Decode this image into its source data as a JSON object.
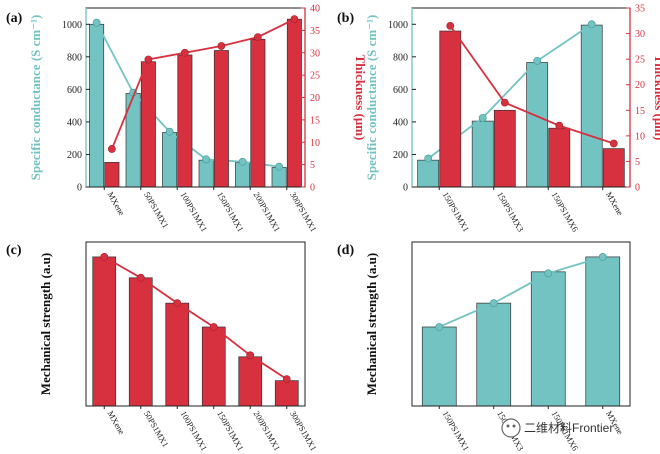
{
  "colors": {
    "teal": "#72c3c1",
    "teal_dark": "#3f9a98",
    "red": "#d7303f",
    "red_dark": "#a81d2a",
    "axis": "#222222"
  },
  "watermark": "二维材料Frontier",
  "chart_data": [
    {
      "panel": "(a)",
      "type": "bar",
      "categories": [
        "MXene",
        "50PS1MX1",
        "100PS1MX1",
        "150PS1MX1",
        "200PS1MX1",
        "300PS1MX1"
      ],
      "left_axis": {
        "label": "Specific conductance (S cm⁻¹)",
        "ylim": [
          0,
          1100
        ],
        "ticks": [
          0,
          200,
          400,
          600,
          800,
          1000
        ]
      },
      "right_axis": {
        "label": "Thickness (μm)",
        "ylim": [
          0,
          40
        ],
        "ticks": [
          0,
          5,
          10,
          15,
          20,
          25,
          30,
          35,
          40
        ]
      },
      "series": [
        {
          "axis": "left",
          "color": "teal",
          "bars": [
            1000,
            575,
            335,
            165,
            150,
            120
          ],
          "line": [
            1010,
            580,
            340,
            170,
            155,
            125
          ]
        },
        {
          "axis": "right",
          "color": "red",
          "bars": [
            5.5,
            28,
            29.5,
            30.5,
            33,
            37.5
          ],
          "line": [
            8.5,
            28.5,
            30,
            31.5,
            33.5,
            37.5
          ]
        }
      ]
    },
    {
      "panel": "(b)",
      "type": "bar",
      "categories": [
        "150PS1MX1",
        "150PS1MX3",
        "150PS1MX6",
        "MXene"
      ],
      "left_axis": {
        "label": "Specific conductance (S cm⁻¹)",
        "ylim": [
          0,
          1100
        ],
        "ticks": [
          0,
          200,
          400,
          600,
          800,
          1000
        ]
      },
      "right_axis": {
        "label": "Thickness (μm)",
        "ylim": [
          0,
          35
        ],
        "ticks": [
          0,
          5,
          10,
          15,
          20,
          25,
          30,
          35
        ]
      },
      "series": [
        {
          "axis": "left",
          "color": "teal",
          "bars": [
            165,
            405,
            765,
            995
          ],
          "line": [
            175,
            425,
            775,
            1000
          ]
        },
        {
          "axis": "right",
          "color": "red",
          "bars": [
            30.5,
            15,
            11.5,
            7.5
          ],
          "line": [
            31.5,
            16.5,
            12,
            8.5
          ]
        }
      ]
    },
    {
      "panel": "(c)",
      "type": "bar",
      "categories": [
        "MXene",
        "50PS1MX1",
        "100PS1MX1",
        "150PS1MX1",
        "200PS1MX1",
        "300PS1MX1"
      ],
      "left_axis": {
        "label": "Mechanical strength (a.u)",
        "ylim": [
          0,
          110
        ]
      },
      "series": [
        {
          "color": "red",
          "bars": [
            100,
            86,
            69,
            53,
            33,
            17
          ],
          "line": [
            100,
            86,
            69,
            53,
            34,
            18
          ]
        }
      ]
    },
    {
      "panel": "(d)",
      "type": "bar",
      "categories": [
        "150PS1MX1",
        "150PS1MX3",
        "150PS1MX6",
        "MXene"
      ],
      "left_axis": {
        "label": "Mechanical strength (a.u)",
        "ylim": [
          0,
          110
        ]
      },
      "series": [
        {
          "color": "teal",
          "bars": [
            53,
            69,
            90,
            100
          ],
          "line": [
            53,
            69,
            89,
            100
          ]
        }
      ]
    }
  ]
}
